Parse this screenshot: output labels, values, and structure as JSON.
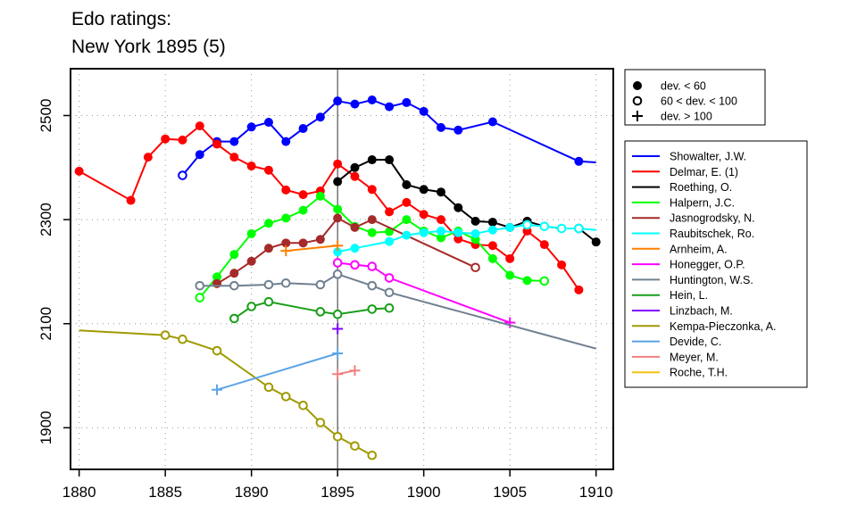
{
  "chart_data": {
    "type": "line",
    "title": "Edo ratings:\nNew York 1895 (5)",
    "xlim": [
      1879.5,
      1911
    ],
    "ylim": [
      1820,
      2590
    ],
    "xticks": [
      1880,
      1885,
      1890,
      1895,
      1900,
      1905,
      1910
    ],
    "yticks": [
      1900,
      2100,
      2300,
      2500
    ],
    "grid": true,
    "event_year": 1895,
    "symbol_legend": {
      "position": "top-right",
      "items": [
        {
          "marker": "filled",
          "label": "dev. < 60"
        },
        {
          "marker": "open",
          "label": "60 < dev. < 100"
        },
        {
          "marker": "plus",
          "label": "dev. > 100"
        }
      ]
    },
    "series_legend_position": "right",
    "series": [
      {
        "name": "Showalter, J.W.",
        "color": "#0000ff",
        "points": [
          [
            1886,
            2385,
            "o"
          ],
          [
            1887,
            2425,
            "f"
          ],
          [
            1888,
            2450,
            "f"
          ],
          [
            1889,
            2450,
            "f"
          ],
          [
            1890,
            2478,
            "f"
          ],
          [
            1891,
            2487,
            "f"
          ],
          [
            1892,
            2450,
            "f"
          ],
          [
            1893,
            2475,
            "f"
          ],
          [
            1894,
            2497,
            "f"
          ],
          [
            1895,
            2528,
            "f"
          ],
          [
            1896,
            2522,
            "f"
          ],
          [
            1897,
            2530,
            "f"
          ],
          [
            1898,
            2517,
            "f"
          ],
          [
            1899,
            2525,
            "f"
          ],
          [
            1900,
            2508,
            "f"
          ],
          [
            1901,
            2477,
            "f"
          ],
          [
            1902,
            2472,
            "f"
          ],
          [
            1904,
            2488,
            "f"
          ],
          [
            1909,
            2412,
            "f"
          ],
          [
            1910,
            2410,
            "-"
          ]
        ]
      },
      {
        "name": "Delmar, E. (1)",
        "color": "#ff0000",
        "points": [
          [
            1880,
            2393,
            "f"
          ],
          [
            1883,
            2337,
            "f"
          ],
          [
            1884,
            2420,
            "f"
          ],
          [
            1885,
            2455,
            "f"
          ],
          [
            1886,
            2453,
            "f"
          ],
          [
            1887,
            2480,
            "f"
          ],
          [
            1888,
            2445,
            "f"
          ],
          [
            1889,
            2420,
            "f"
          ],
          [
            1890,
            2403,
            "f"
          ],
          [
            1891,
            2395,
            "f"
          ],
          [
            1892,
            2357,
            "f"
          ],
          [
            1893,
            2348,
            "f"
          ],
          [
            1894,
            2355,
            "f"
          ],
          [
            1895,
            2407,
            "f"
          ],
          [
            1896,
            2383,
            "f"
          ],
          [
            1897,
            2358,
            "f"
          ],
          [
            1898,
            2315,
            "f"
          ],
          [
            1899,
            2333,
            "f"
          ],
          [
            1900,
            2310,
            "f"
          ],
          [
            1901,
            2300,
            "f"
          ],
          [
            1902,
            2263,
            "f"
          ],
          [
            1903,
            2252,
            "f"
          ],
          [
            1904,
            2250,
            "f"
          ],
          [
            1905,
            2225,
            "f"
          ],
          [
            1906,
            2278,
            "f"
          ],
          [
            1907,
            2252,
            "f"
          ],
          [
            1908,
            2213,
            "f"
          ],
          [
            1909,
            2165,
            "f"
          ]
        ]
      },
      {
        "name": "Roething, O.",
        "color": "#000000",
        "points": [
          [
            1895,
            2373,
            "f"
          ],
          [
            1896,
            2400,
            "f"
          ],
          [
            1897,
            2415,
            "f"
          ],
          [
            1898,
            2415,
            "f"
          ],
          [
            1899,
            2367,
            "f"
          ],
          [
            1900,
            2358,
            "f"
          ],
          [
            1901,
            2353,
            "f"
          ],
          [
            1902,
            2323,
            "f"
          ],
          [
            1903,
            2297,
            "f"
          ],
          [
            1904,
            2295,
            "f"
          ],
          [
            1905,
            2285,
            "f"
          ],
          [
            1906,
            2297,
            "f"
          ],
          [
            1907,
            2287,
            "f"
          ],
          [
            1908,
            2283,
            "f"
          ],
          [
            1909,
            2283,
            "o"
          ],
          [
            1910,
            2257,
            "f"
          ]
        ]
      },
      {
        "name": "Halpern, J.C.",
        "color": "#00ff00",
        "points": [
          [
            1887,
            2150,
            "o"
          ],
          [
            1888,
            2190,
            "f"
          ],
          [
            1889,
            2233,
            "f"
          ],
          [
            1890,
            2273,
            "f"
          ],
          [
            1891,
            2293,
            "f"
          ],
          [
            1892,
            2303,
            "f"
          ],
          [
            1893,
            2318,
            "f"
          ],
          [
            1894,
            2345,
            "f"
          ],
          [
            1895,
            2320,
            "f"
          ],
          [
            1896,
            2287,
            "f"
          ],
          [
            1897,
            2275,
            "f"
          ],
          [
            1898,
            2277,
            "f"
          ],
          [
            1899,
            2300,
            "f"
          ],
          [
            1900,
            2278,
            "f"
          ],
          [
            1901,
            2265,
            "f"
          ],
          [
            1902,
            2278,
            "f"
          ],
          [
            1903,
            2262,
            "f"
          ],
          [
            1904,
            2225,
            "f"
          ],
          [
            1905,
            2193,
            "f"
          ],
          [
            1906,
            2183,
            "f"
          ],
          [
            1907,
            2182,
            "o"
          ]
        ]
      },
      {
        "name": "Jasnogrodsky, N.",
        "color": "#a52a2a",
        "points": [
          [
            1888,
            2177,
            "f"
          ],
          [
            1889,
            2197,
            "f"
          ],
          [
            1890,
            2220,
            "f"
          ],
          [
            1891,
            2245,
            "f"
          ],
          [
            1892,
            2255,
            "f"
          ],
          [
            1893,
            2255,
            "f"
          ],
          [
            1894,
            2262,
            "f"
          ],
          [
            1895,
            2303,
            "f"
          ],
          [
            1896,
            2285,
            "f"
          ],
          [
            1897,
            2300,
            "f"
          ],
          [
            1903,
            2208,
            "o"
          ]
        ]
      },
      {
        "name": "Raubitschek, Ro.",
        "color": "#00ffff",
        "points": [
          [
            1895,
            2238,
            "f"
          ],
          [
            1896,
            2245,
            "f"
          ],
          [
            1898,
            2258,
            "f"
          ],
          [
            1899,
            2270,
            "f"
          ],
          [
            1900,
            2275,
            "f"
          ],
          [
            1901,
            2278,
            "f"
          ],
          [
            1902,
            2275,
            "f"
          ],
          [
            1903,
            2273,
            "f"
          ],
          [
            1904,
            2280,
            "f"
          ],
          [
            1905,
            2285,
            "f"
          ],
          [
            1906,
            2290,
            "o"
          ],
          [
            1907,
            2287,
            "o"
          ],
          [
            1908,
            2283,
            "o"
          ],
          [
            1909,
            2283,
            "o"
          ],
          [
            1910,
            2280,
            "-"
          ]
        ]
      },
      {
        "name": "Arnheim, A.",
        "color": "#ff7f00",
        "points": [
          [
            1892,
            2240,
            "p"
          ],
          [
            1895,
            2250,
            "p"
          ]
        ]
      },
      {
        "name": "Honegger, O.P.",
        "color": "#ff00ff",
        "points": [
          [
            1895,
            2217,
            "o"
          ],
          [
            1896,
            2213,
            "o"
          ],
          [
            1897,
            2210,
            "o"
          ],
          [
            1898,
            2188,
            "o"
          ],
          [
            1905,
            2102,
            "p"
          ]
        ]
      },
      {
        "name": "Huntington, W.S.",
        "color": "#708090",
        "points": [
          [
            1887,
            2173,
            "o"
          ],
          [
            1889,
            2173,
            "o"
          ],
          [
            1891,
            2175,
            "o"
          ],
          [
            1892,
            2178,
            "o"
          ],
          [
            1894,
            2175,
            "o"
          ],
          [
            1895,
            2195,
            "o"
          ],
          [
            1897,
            2173,
            "o"
          ],
          [
            1898,
            2160,
            "o"
          ],
          [
            1910,
            2052,
            "-"
          ]
        ]
      },
      {
        "name": "Hein, L.",
        "color": "#1a9e1a",
        "points": [
          [
            1889,
            2110,
            "o"
          ],
          [
            1890,
            2133,
            "o"
          ],
          [
            1891,
            2142,
            "o"
          ],
          [
            1894,
            2123,
            "o"
          ],
          [
            1895,
            2118,
            "o"
          ],
          [
            1897,
            2128,
            "o"
          ],
          [
            1898,
            2130,
            "o"
          ]
        ]
      },
      {
        "name": "Linzbach, M.",
        "color": "#8000ff",
        "points": [
          [
            1895,
            2090,
            "p"
          ]
        ]
      },
      {
        "name": "Kempa-Pieczonka, A.",
        "color": "#a09a00",
        "points": [
          [
            1880,
            2087,
            "-"
          ],
          [
            1885,
            2078,
            "o"
          ],
          [
            1886,
            2070,
            "o"
          ],
          [
            1888,
            2048,
            "o"
          ],
          [
            1891,
            1978,
            "o"
          ],
          [
            1892,
            1960,
            "o"
          ],
          [
            1893,
            1943,
            "o"
          ],
          [
            1894,
            1910,
            "o"
          ],
          [
            1895,
            1883,
            "o"
          ],
          [
            1896,
            1865,
            "o"
          ],
          [
            1897,
            1847,
            "o"
          ]
        ]
      },
      {
        "name": "Devide, C.",
        "color": "#5ba3e6",
        "points": [
          [
            1888,
            1973,
            "p"
          ],
          [
            1895,
            2043,
            "p"
          ]
        ]
      },
      {
        "name": "Meyer, M.",
        "color": "#f08080",
        "points": [
          [
            1895,
            2003,
            "p"
          ],
          [
            1896,
            2010,
            "p"
          ]
        ]
      },
      {
        "name": "Roche, T.H.",
        "color": "#f4c20d",
        "points": []
      }
    ]
  }
}
